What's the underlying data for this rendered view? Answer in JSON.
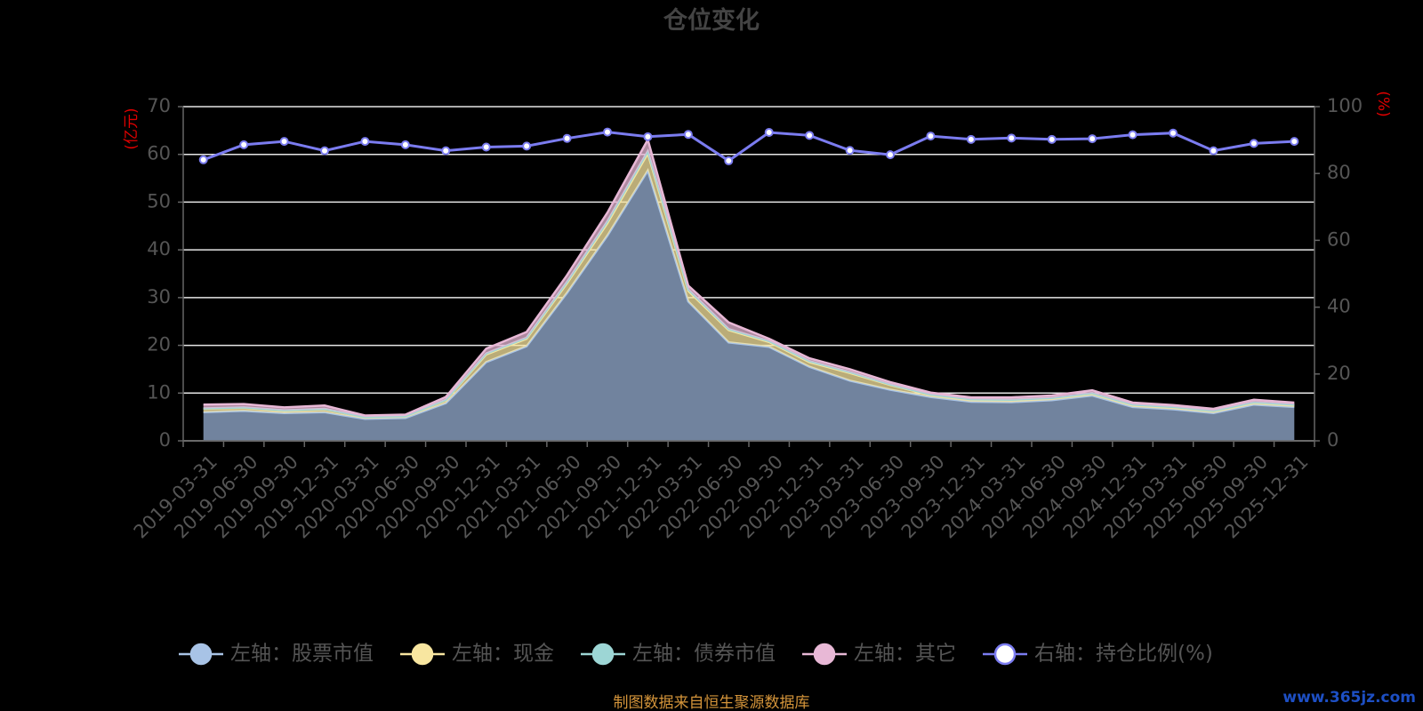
{
  "chart_data": {
    "type": "area",
    "title": "仓位变化",
    "left_unit": "(亿元)",
    "right_unit": "(%)",
    "ylim_left": [
      0,
      70
    ],
    "yticks_left": [
      0,
      10,
      20,
      30,
      40,
      50,
      60,
      70
    ],
    "ylim_right": [
      0,
      100
    ],
    "yticks_right": [
      0,
      20,
      40,
      60,
      80,
      100
    ],
    "grid": true,
    "legend_position": "bottom",
    "categories": [
      "2019-03-31",
      "2019-06-30",
      "2019-09-30",
      "2019-12-31",
      "2020-03-31",
      "2020-06-30",
      "2020-09-30",
      "2020-12-31",
      "2021-03-31",
      "2021-06-30",
      "2021-09-30",
      "2021-12-31",
      "2022-03-31",
      "2022-06-30",
      "2022-09-30",
      "2022-12-31",
      "2023-03-31",
      "2023-06-30",
      "2023-09-30",
      "2023-12-31",
      "2024-03-31",
      "2024-06-30",
      "2024-09-30",
      "2024-12-31",
      "2025-03-31",
      "2025-06-30",
      "2025-09-30",
      "2025-12-31"
    ],
    "stacked_series": [
      {
        "name": "左轴：股票市值",
        "color": "#a8c3e6",
        "values": [
          6.0,
          6.3,
          5.8,
          6.0,
          4.6,
          4.8,
          7.9,
          16.5,
          19.8,
          31.0,
          43.0,
          56.6,
          29.2,
          20.6,
          19.7,
          15.5,
          12.6,
          10.7,
          9.2,
          8.2,
          8.1,
          8.5,
          9.5,
          7.1,
          6.6,
          5.8,
          7.6,
          7.1
        ]
      },
      {
        "name": "左轴：现金",
        "color": "#f8e6a0",
        "values": [
          0.7,
          0.6,
          0.5,
          0.6,
          0.4,
          0.4,
          0.6,
          1.6,
          1.6,
          2.0,
          2.6,
          3.6,
          2.2,
          2.6,
          1.0,
          1.0,
          1.6,
          1.0,
          0.4,
          0.4,
          0.4,
          0.4,
          0.4,
          0.4,
          0.4,
          0.4,
          0.4,
          0.4
        ]
      },
      {
        "name": "左轴：债券市值",
        "color": "#9dd6d5",
        "values": [
          0.1,
          0.1,
          0.1,
          0.1,
          0.0,
          0.0,
          0.1,
          0.2,
          0.2,
          0.3,
          0.4,
          0.5,
          0.3,
          0.2,
          0.2,
          0.2,
          0.2,
          0.1,
          0.1,
          0.1,
          0.1,
          0.1,
          0.1,
          0.1,
          0.1,
          0.1,
          0.1,
          0.1
        ]
      },
      {
        "name": "左轴：其它",
        "color": "#e8b8d6",
        "values": [
          0.8,
          0.7,
          0.6,
          0.7,
          0.3,
          0.3,
          0.6,
          1.0,
          1.2,
          1.4,
          1.8,
          2.4,
          0.8,
          1.4,
          0.5,
          0.6,
          0.6,
          0.5,
          0.4,
          0.4,
          0.5,
          0.5,
          0.6,
          0.4,
          0.4,
          0.4,
          0.5,
          0.4
        ]
      }
    ],
    "line_series": {
      "name": "右轴：持仓比例(%)",
      "color": "#7b7cf0",
      "axis": "right",
      "values": [
        84.1,
        88.6,
        89.6,
        86.8,
        89.6,
        88.6,
        86.8,
        87.9,
        88.2,
        90.5,
        92.4,
        91.0,
        91.7,
        83.8,
        92.3,
        91.4,
        86.9,
        85.6,
        91.2,
        90.2,
        90.6,
        90.2,
        90.4,
        91.6,
        92.1,
        86.8,
        89.0,
        89.6
      ]
    }
  },
  "footer": {
    "source": "制图数据来自恒生聚源数据库",
    "watermark": "www.365jz.com"
  }
}
